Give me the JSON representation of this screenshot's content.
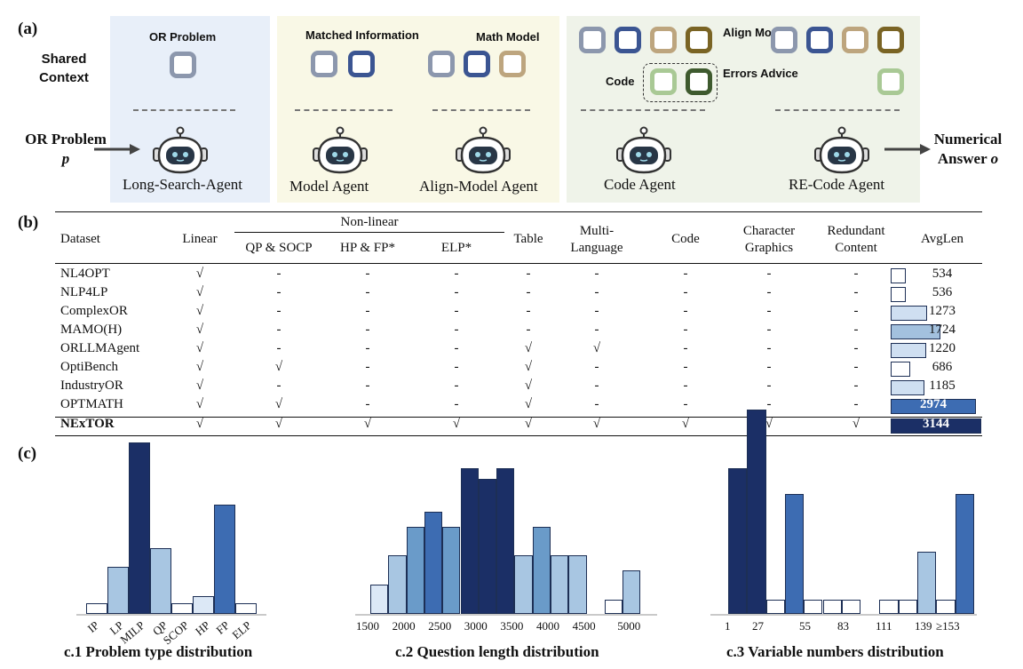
{
  "panel_labels": {
    "a": "(a)",
    "b": "(b)",
    "c": "(c)"
  },
  "section_a": {
    "shared_context": "Shared Context",
    "input_label": "OR Problem",
    "input_var": "p",
    "output_label": "Numerical Answer",
    "output_var": "o",
    "context_labels": {
      "or_problem": "OR Problem",
      "matched_information": "Matched Information",
      "math_model": "Math Model",
      "align_model": "Align Model",
      "code": "Code",
      "errors_advice": "Errors Advice"
    },
    "agents": [
      "Long-Search-Agent",
      "Model Agent",
      "Align-Model Agent",
      "Code Agent",
      "RE-Code Agent"
    ],
    "colors": {
      "panel1_bg": "#e8eff9",
      "panel2_bg": "#f9f8e6",
      "panel3_bg": "#eff3e9",
      "grey_blue": "#8c97ad",
      "navy": "#3b5592",
      "tan": "#bda57e",
      "olive_brown": "#7a6424",
      "light_green": "#a9c995",
      "dark_green": "#3e5a2e"
    }
  },
  "section_b": {
    "headers": {
      "dataset": "Dataset",
      "linear": "Linear",
      "non_linear": "Non-linear",
      "qp_socp": "QP & SOCP",
      "hp_fp": "HP & FP*",
      "elp": "ELP*",
      "table": "Table",
      "multi_language": "Multi-Language",
      "code": "Code",
      "character_graphics": "Character Graphics",
      "redundant_content": "Redundant Content",
      "avglen": "AvgLen"
    },
    "rows": [
      {
        "name": "NL4OPT",
        "cells": [
          "√",
          "-",
          "-",
          "-",
          "-",
          "-",
          "-",
          "-",
          "-"
        ],
        "avglen": 534
      },
      {
        "name": "NLP4LP",
        "cells": [
          "√",
          "-",
          "-",
          "-",
          "-",
          "-",
          "-",
          "-",
          "-"
        ],
        "avglen": 536
      },
      {
        "name": "ComplexOR",
        "cells": [
          "√",
          "-",
          "-",
          "-",
          "-",
          "-",
          "-",
          "-",
          "-"
        ],
        "avglen": 1273
      },
      {
        "name": "MAMO(H)",
        "cells": [
          "√",
          "-",
          "-",
          "-",
          "-",
          "-",
          "-",
          "-",
          "-"
        ],
        "avglen": 1724
      },
      {
        "name": "ORLLMAgent",
        "cells": [
          "√",
          "-",
          "-",
          "-",
          "√",
          "√",
          "-",
          "-",
          "-"
        ],
        "avglen": 1220
      },
      {
        "name": "OptiBench",
        "cells": [
          "√",
          "√",
          "-",
          "-",
          "√",
          "-",
          "-",
          "-",
          "-"
        ],
        "avglen": 686
      },
      {
        "name": "IndustryOR",
        "cells": [
          "√",
          "-",
          "-",
          "-",
          "√",
          "-",
          "-",
          "-",
          "-"
        ],
        "avglen": 1185
      },
      {
        "name": "OPTMATH",
        "cells": [
          "√",
          "√",
          "-",
          "-",
          "√",
          "-",
          "-",
          "-",
          "-"
        ],
        "avglen": 2974
      },
      {
        "name": "NExTOR",
        "cells": [
          "√",
          "√",
          "√",
          "√",
          "√",
          "√",
          "√",
          "√",
          "√"
        ],
        "avglen": 3144
      }
    ]
  },
  "chart_data": [
    {
      "type": "bar",
      "title": "c.1 Problem type distribution",
      "categories": [
        "IP",
        "LP",
        "MILP",
        "QP",
        "SCOP",
        "HP",
        "FP",
        "ELP"
      ],
      "values": [
        3,
        13,
        47,
        18,
        3,
        5,
        30,
        3
      ]
    },
    {
      "type": "bar",
      "title": "c.2 Question length distribution",
      "tick_labels": [
        "1500",
        "2000",
        "2500",
        "3000",
        "3500",
        "4000",
        "4500",
        "5000"
      ],
      "x": [
        1500,
        1750,
        2000,
        2250,
        2500,
        2750,
        3000,
        3250,
        3500,
        3750,
        4000,
        4250,
        4500,
        4750,
        5000
      ],
      "values": [
        8,
        16,
        24,
        28,
        24,
        40,
        37,
        40,
        16,
        24,
        16,
        16,
        0,
        4,
        12
      ]
    },
    {
      "type": "bar",
      "title": "c.3 Variable numbers distribution",
      "tick_labels": [
        "1",
        "27",
        "55",
        "83",
        "111",
        "139",
        "≥153"
      ],
      "values": [
        40,
        56,
        4,
        33,
        4,
        4,
        4,
        0,
        4,
        4,
        17,
        4,
        33
      ]
    }
  ]
}
